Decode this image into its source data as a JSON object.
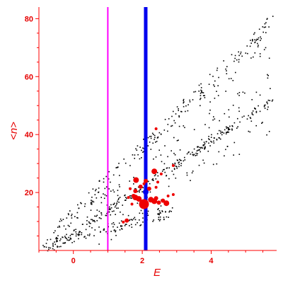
{
  "chart_data": {
    "type": "scatter",
    "title": "",
    "xlabel": "E",
    "ylabel": "<n>",
    "xlim": [
      -1.0,
      5.9
    ],
    "ylim": [
      0,
      84
    ],
    "x_ticks": [
      0,
      2,
      4
    ],
    "y_ticks": [
      20,
      40,
      60,
      80
    ],
    "grid": false,
    "colors": {
      "axes": "#ff0000",
      "ticks": "#e60000",
      "background_points": "#000000",
      "data_points": "#ee0000",
      "magenta_line": "#ff00ff",
      "blue_line": "#0000ee",
      "blue_point": "#0000ee"
    },
    "vertical_lines": [
      {
        "x": 1.0,
        "color": "#ff00ff"
      },
      {
        "x": 2.1,
        "color": "#0000ee"
      }
    ],
    "series": [
      {
        "values": [
          {
            "x": 2.05,
            "y": 16.0,
            "size": 7
          },
          {
            "x": 1.9,
            "y": 17.8,
            "size": 4
          },
          {
            "x": 1.8,
            "y": 18.3,
            "size": 4
          },
          {
            "x": 1.8,
            "y": 20.5,
            "size": 3
          },
          {
            "x": 1.82,
            "y": 24.3,
            "size": 4
          },
          {
            "x": 1.75,
            "y": 18.8,
            "size": 3
          },
          {
            "x": 1.95,
            "y": 22.0,
            "size": 3
          },
          {
            "x": 2.2,
            "y": 21.3,
            "size": 3
          },
          {
            "x": 2.1,
            "y": 24.0,
            "size": 3
          },
          {
            "x": 2.25,
            "y": 17.5,
            "size": 4
          },
          {
            "x": 2.35,
            "y": 17.0,
            "size": 4
          },
          {
            "x": 2.48,
            "y": 16.5,
            "size": 3
          },
          {
            "x": 2.4,
            "y": 18.0,
            "size": 3
          },
          {
            "x": 2.35,
            "y": 27.3,
            "size": 4
          },
          {
            "x": 2.6,
            "y": 17.2,
            "size": 3
          },
          {
            "x": 2.7,
            "y": 16.3,
            "size": 4
          },
          {
            "x": 2.75,
            "y": 18.8,
            "size": 2
          },
          {
            "x": 2.9,
            "y": 19.3,
            "size": 2
          },
          {
            "x": 2.45,
            "y": 23.6,
            "size": 2
          },
          {
            "x": 2.4,
            "y": 21.8,
            "size": 2
          },
          {
            "x": 2.55,
            "y": 26.4,
            "size": 2
          },
          {
            "x": 1.55,
            "y": 10.3,
            "size": 3
          },
          {
            "x": 1.45,
            "y": 9.8,
            "size": 2
          },
          {
            "x": 1.65,
            "y": 21.3,
            "size": 2
          },
          {
            "x": 1.7,
            "y": 16.0,
            "size": 2
          },
          {
            "x": 1.6,
            "y": 18.3,
            "size": 2
          },
          {
            "x": 2.4,
            "y": 42.0,
            "size": 2
          },
          {
            "x": 2.9,
            "y": 29.3,
            "size": 2
          },
          {
            "x": 2.05,
            "y": 23.0,
            "size": 2
          }
        ]
      },
      {
        "values": [
          {
            "x": 2.1,
            "y": 20.2,
            "size": 4
          }
        ]
      }
    ],
    "background_points": {
      "color": "#000000",
      "description_bands": [
        {
          "x_start": -0.9,
          "x_end": 5.8,
          "y_start": 0.5,
          "y_end": 52,
          "band": "main diagonal band"
        },
        {
          "x_start": -0.5,
          "x_end": 5.7,
          "y_start": 3,
          "y_end": 82,
          "band": "upper band"
        }
      ]
    }
  }
}
